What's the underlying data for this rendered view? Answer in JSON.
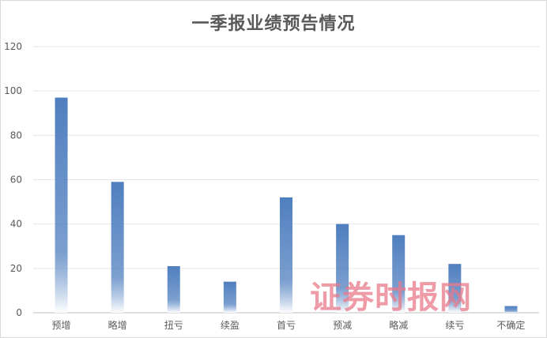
{
  "chart_data": {
    "type": "bar",
    "title": "一季报业绩预告情况",
    "xlabel": "",
    "ylabel": "",
    "categories": [
      "预增",
      "略增",
      "扭亏",
      "续盈",
      "首亏",
      "预减",
      "略减",
      "续亏",
      "不确定"
    ],
    "values": [
      97,
      59,
      21,
      14,
      52,
      40,
      35,
      22,
      3
    ],
    "ylim": [
      0,
      120
    ],
    "yticks": [
      0,
      20,
      40,
      60,
      80,
      100,
      120
    ],
    "grid": true,
    "legend": "none",
    "bar_color_top": "#4f7fbf",
    "bar_color_bottom": "#ffffff"
  },
  "watermark": "证券时报网"
}
